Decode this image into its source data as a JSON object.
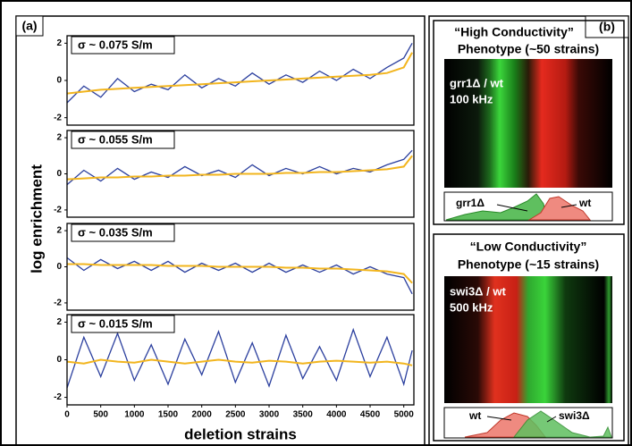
{
  "panel_a": {
    "label": "(a)",
    "y_label": "log enrichment",
    "x_label": "deletion strains"
  },
  "chart_data": [
    {
      "type": "line",
      "title": "σ ~ 0.075 S/m",
      "x": [
        0,
        250,
        500,
        750,
        1000,
        1250,
        1500,
        1750,
        2000,
        2250,
        2500,
        2750,
        3000,
        3250,
        3500,
        3750,
        4000,
        4250,
        4500,
        4750,
        5000,
        5125
      ],
      "values": [
        -1.2,
        -0.3,
        -0.9,
        0.1,
        -0.6,
        -0.2,
        -0.5,
        0.3,
        -0.4,
        0.1,
        -0.3,
        0.4,
        -0.2,
        0.3,
        -0.1,
        0.5,
        0.0,
        0.6,
        0.1,
        0.7,
        1.2,
        2.0
      ],
      "trend": [
        -0.7,
        -0.6,
        -0.5,
        -0.45,
        -0.4,
        -0.35,
        -0.3,
        -0.25,
        -0.2,
        -0.15,
        -0.1,
        -0.05,
        0,
        0.05,
        0.1,
        0.15,
        0.2,
        0.25,
        0.3,
        0.4,
        0.7,
        1.5
      ],
      "color": "#2b3f9e",
      "trend_color": "#f2b51e",
      "xlim": [
        0,
        5150
      ],
      "ylim": [
        -2.4,
        2.4
      ],
      "yticks": [
        -2,
        0,
        2
      ]
    },
    {
      "type": "line",
      "title": "σ ~ 0.055 S/m",
      "x": [
        0,
        250,
        500,
        750,
        1000,
        1250,
        1500,
        1750,
        2000,
        2250,
        2500,
        2750,
        3000,
        3250,
        3500,
        3750,
        4000,
        4250,
        4500,
        4750,
        5000,
        5125
      ],
      "values": [
        -0.6,
        0.2,
        -0.4,
        0.3,
        -0.3,
        0.1,
        -0.2,
        0.4,
        -0.1,
        0.2,
        -0.2,
        0.5,
        -0.1,
        0.3,
        0.0,
        0.4,
        0.0,
        0.3,
        0.1,
        0.5,
        0.8,
        1.3
      ],
      "trend": [
        -0.3,
        -0.25,
        -0.2,
        -0.2,
        -0.15,
        -0.15,
        -0.1,
        -0.1,
        -0.05,
        -0.05,
        0,
        0,
        0,
        0.05,
        0.05,
        0.1,
        0.1,
        0.15,
        0.2,
        0.25,
        0.4,
        1.0
      ],
      "color": "#2b3f9e",
      "trend_color": "#f2b51e",
      "xlim": [
        0,
        5150
      ],
      "ylim": [
        -2.4,
        2.4
      ],
      "yticks": [
        -2,
        0,
        2
      ]
    },
    {
      "type": "line",
      "title": "σ ~ 0.035 S/m",
      "x": [
        0,
        250,
        500,
        750,
        1000,
        1250,
        1500,
        1750,
        2000,
        2250,
        2500,
        2750,
        3000,
        3250,
        3500,
        3750,
        4000,
        4250,
        4500,
        4750,
        5000,
        5125
      ],
      "values": [
        0.5,
        -0.2,
        0.4,
        -0.1,
        0.3,
        -0.2,
        0.3,
        -0.3,
        0.2,
        -0.2,
        0.2,
        -0.3,
        0.2,
        -0.3,
        0.1,
        -0.3,
        0.1,
        -0.4,
        0.0,
        -0.4,
        -0.6,
        -1.5
      ],
      "trend": [
        0.15,
        0.15,
        0.1,
        0.1,
        0.1,
        0.1,
        0.05,
        0.05,
        0.05,
        0,
        0,
        0,
        0,
        -0.05,
        -0.05,
        -0.1,
        -0.1,
        -0.15,
        -0.2,
        -0.25,
        -0.4,
        -0.9
      ],
      "color": "#2b3f9e",
      "trend_color": "#f2b51e",
      "xlim": [
        0,
        5150
      ],
      "ylim": [
        -2.4,
        2.4
      ],
      "yticks": [
        -2,
        0,
        2
      ]
    },
    {
      "type": "line",
      "title": "σ ~ 0.015 S/m",
      "x": [
        0,
        250,
        500,
        750,
        1000,
        1250,
        1500,
        1750,
        2000,
        2250,
        2500,
        2750,
        3000,
        3250,
        3500,
        3750,
        4000,
        4250,
        4500,
        4750,
        5000,
        5125
      ],
      "values": [
        -1.5,
        1.2,
        -0.9,
        1.4,
        -1.1,
        0.8,
        -1.3,
        1.1,
        -0.8,
        1.5,
        -1.2,
        0.9,
        -1.4,
        1.3,
        -1.0,
        0.7,
        -1.1,
        1.6,
        -0.9,
        1.2,
        -1.3,
        0.5
      ],
      "trend": [
        -0.1,
        -0.2,
        0,
        -0.1,
        -0.15,
        0,
        -0.1,
        -0.2,
        -0.1,
        0,
        -0.1,
        -0.15,
        -0.05,
        -0.1,
        -0.2,
        -0.1,
        -0.05,
        -0.1,
        -0.15,
        -0.1,
        -0.2,
        -0.3
      ],
      "color": "#2b3f9e",
      "trend_color": "#f2b51e",
      "xlim": [
        0,
        5150
      ],
      "ylim": [
        -2.4,
        2.4
      ],
      "yticks": [
        -2,
        0,
        2
      ],
      "xticks": [
        0,
        500,
        1000,
        1500,
        2000,
        2500,
        3000,
        3500,
        4000,
        4500,
        5000
      ]
    }
  ],
  "panel_b": {
    "label": "(b)",
    "high": {
      "title": [
        "“High Conductivity”",
        "Phenotype (~50 strains)"
      ],
      "overlay": [
        "grr1Δ / wt",
        "100 kHz"
      ],
      "labels": [
        "grr1Δ",
        "wt"
      ]
    },
    "low": {
      "title": [
        "“Low Conductivity”",
        "Phenotype (~15 strains)"
      ],
      "overlay": [
        "swi3Δ / wt",
        "500 kHz"
      ],
      "labels": [
        "wt",
        "swi3Δ"
      ]
    }
  }
}
